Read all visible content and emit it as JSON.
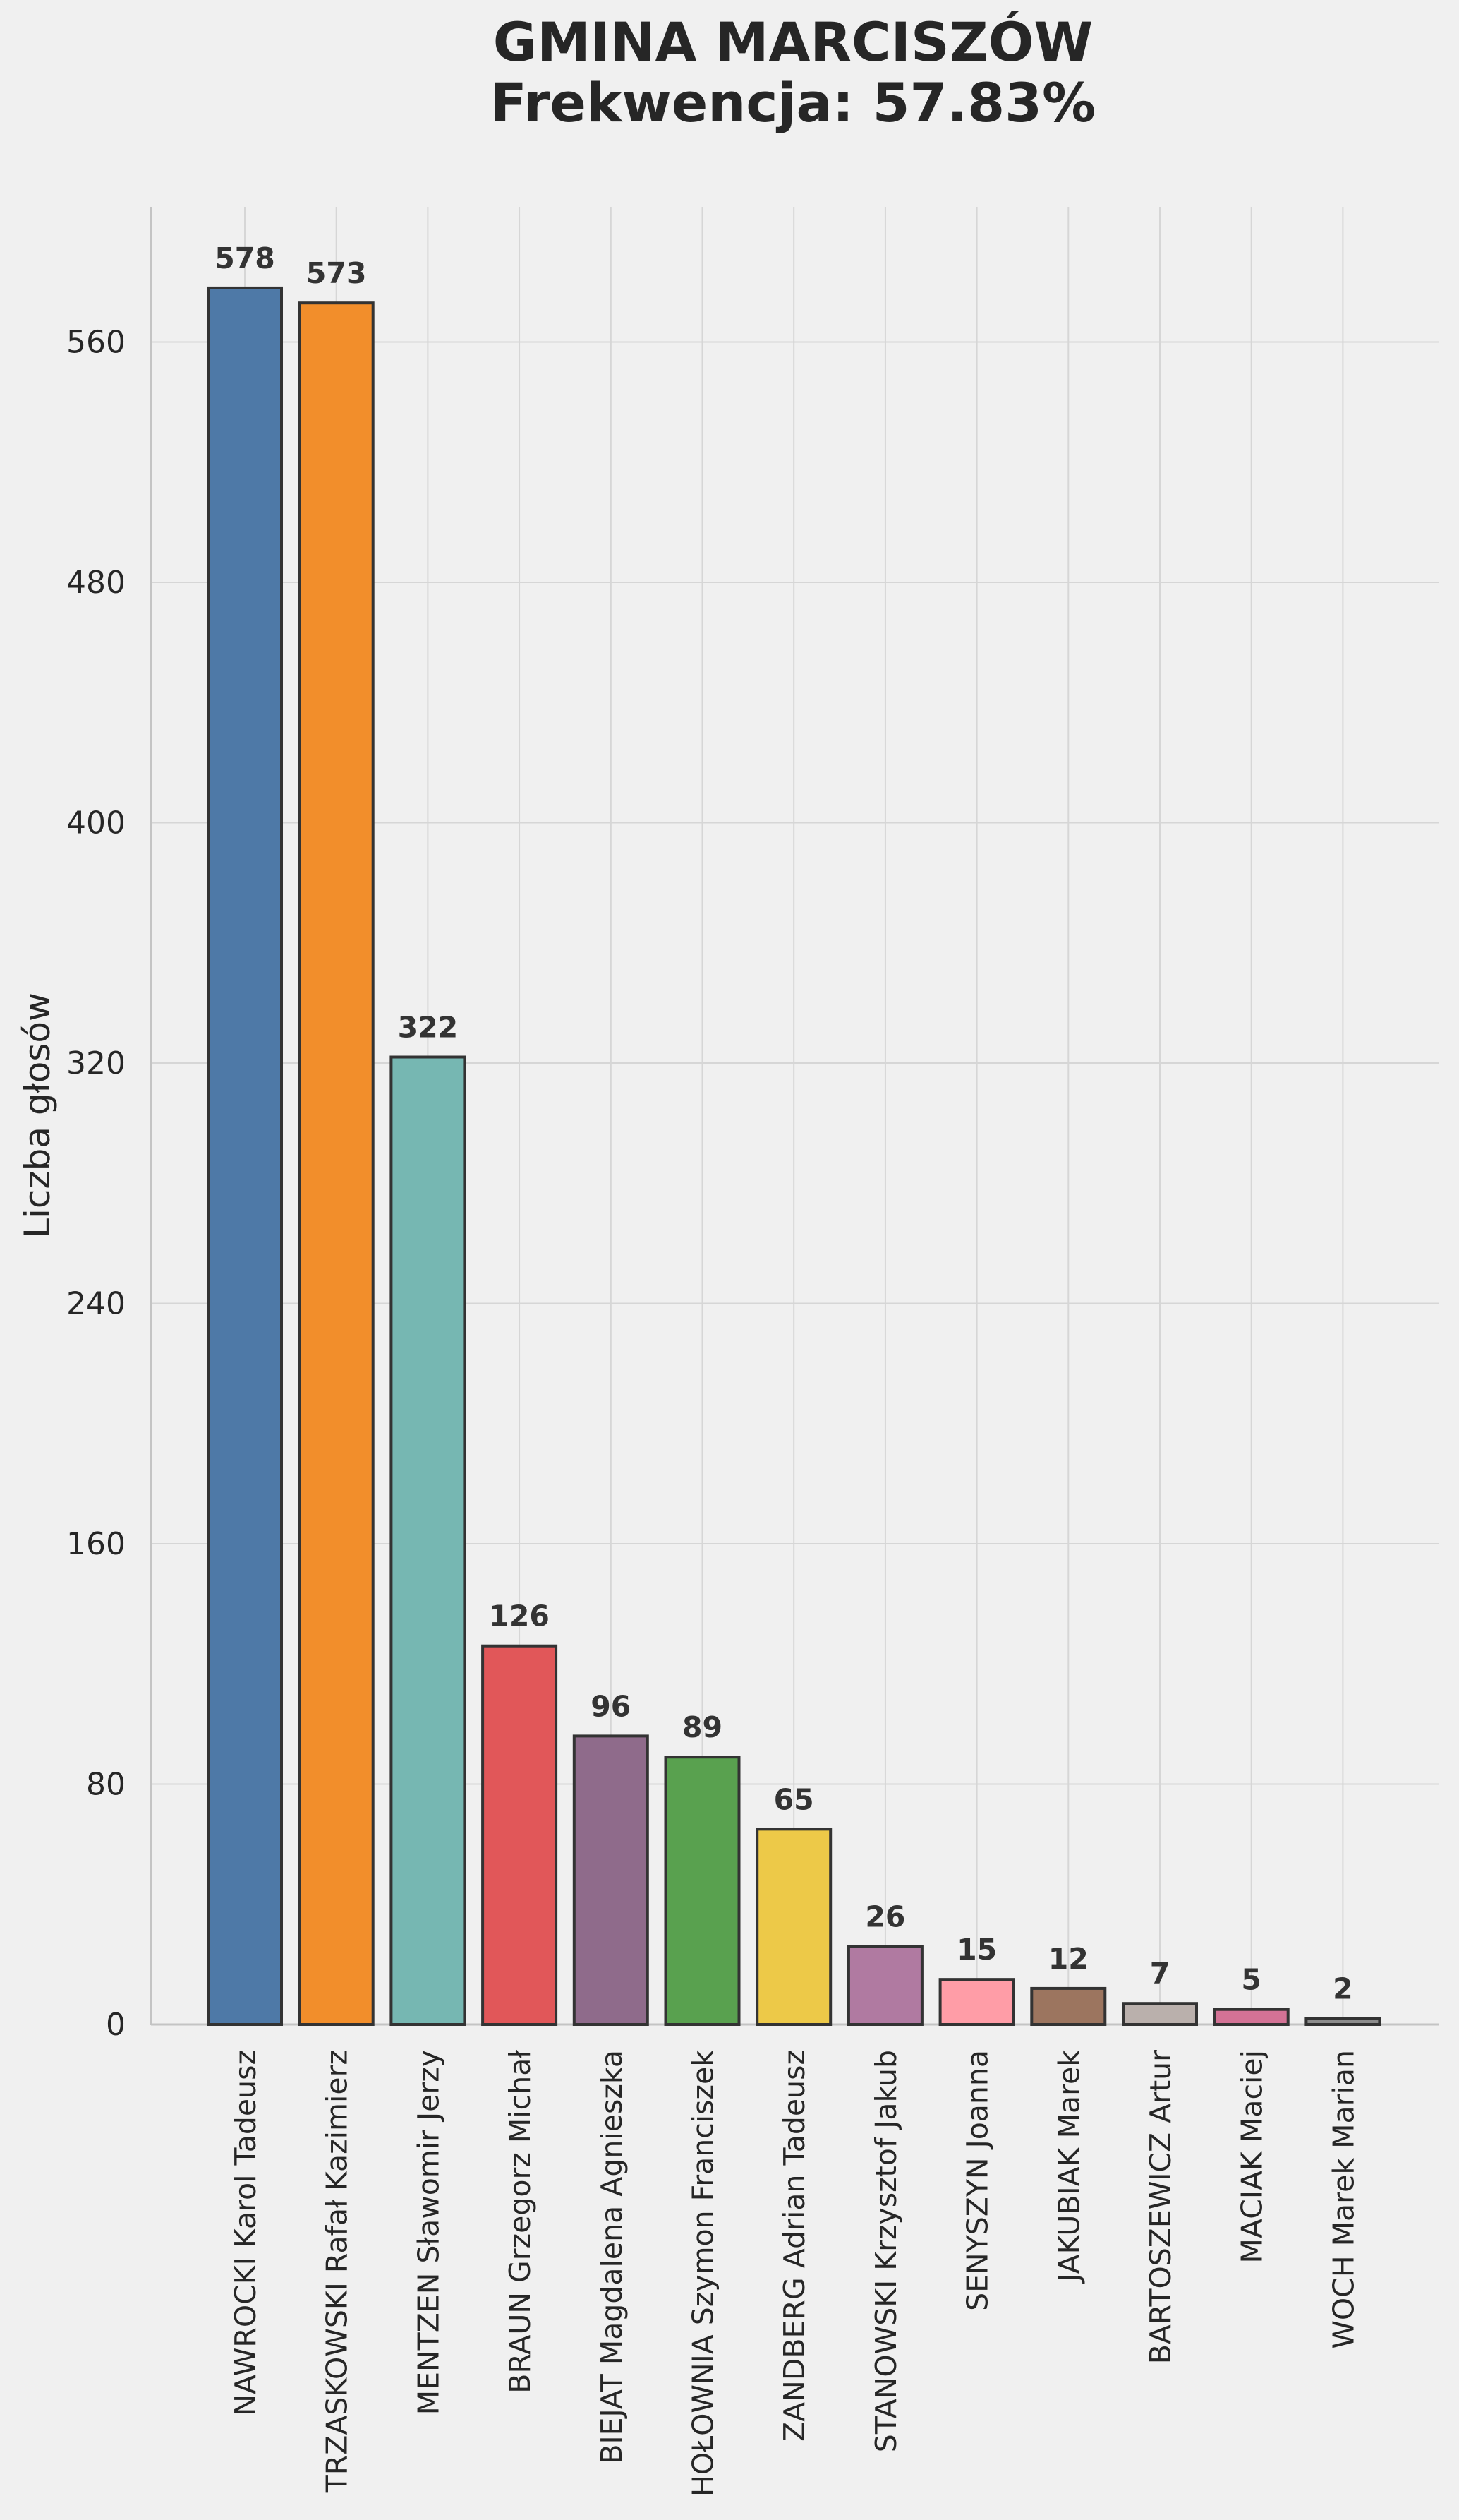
{
  "chart_data": {
    "type": "bar",
    "title": "GMINA MARCISZÓW",
    "subtitle": "Frekwencja: 57.83%",
    "xlabel": "",
    "ylabel": "Liczba głosów",
    "ylim": [
      0,
      605
    ],
    "yticks": [
      0,
      80,
      160,
      240,
      320,
      400,
      480,
      560
    ],
    "grid": true,
    "categories": [
      "NAWROCKI Karol Tadeusz",
      "TRZASKOWSKI Rafał Kazimierz",
      "MENTZEN Sławomir Jerzy",
      "BRAUN Grzegorz Michał",
      "BIEJAT Magdalena Agnieszka",
      "HOŁOWNIA Szymon Franciszek",
      "ZANDBERG Adrian Tadeusz",
      "STANOWSKI Krzysztof Jakub",
      "SENYSZYN Joanna",
      "JAKUBIAK Marek",
      "BARTOSZEWICZ Artur",
      "MACIAK Maciej",
      "WOCH Marek Marian"
    ],
    "values": [
      578,
      573,
      322,
      126,
      96,
      89,
      65,
      26,
      15,
      12,
      7,
      5,
      2
    ],
    "colors": [
      "#4e79a7",
      "#f28e2b",
      "#76b7b2",
      "#e15759",
      "#8f6b8b",
      "#59a14f",
      "#edc948",
      "#b07aa1",
      "#ff9da7",
      "#9c755f",
      "#bab0ac",
      "#d37295",
      "#8c8c8c"
    ]
  }
}
